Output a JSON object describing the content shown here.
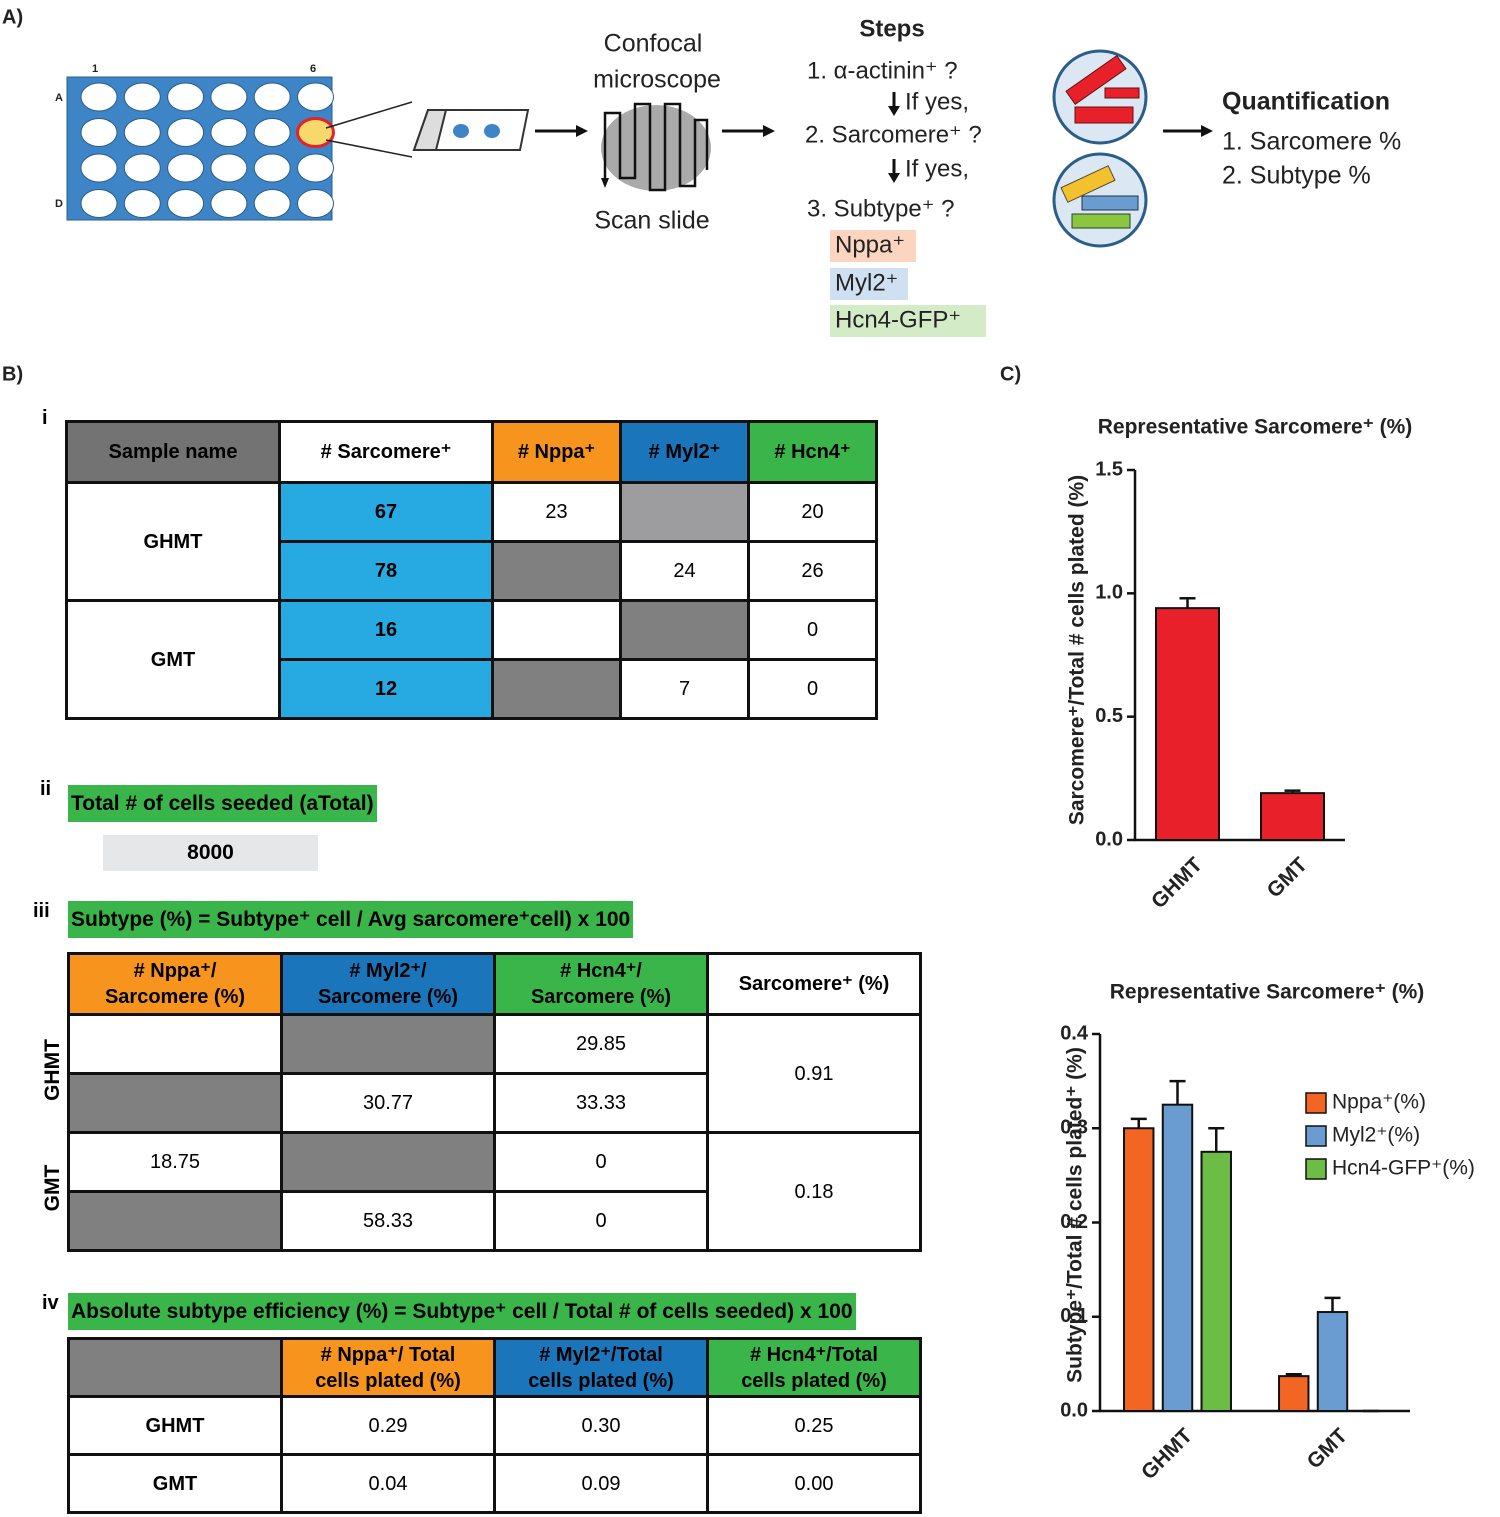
{
  "panel_a": {
    "label": "A)",
    "plate": {
      "col_first": "1",
      "col_last": "6",
      "row_first": "A",
      "row_last": "D"
    },
    "microscope": {
      "line1": "Confocal",
      "line2": "microscope",
      "caption": "Scan slide"
    },
    "steps": {
      "title": "Steps",
      "step1": "1. α-actinin⁺ ?",
      "if1": "If yes,",
      "step2": "2. Sarcomere⁺ ?",
      "if2": "If yes,",
      "step3": "3. Subtype⁺ ?",
      "subtypes": [
        "Nppa⁺",
        "Myl2⁺",
        "Hcn4-GFP⁺"
      ]
    },
    "quantification": {
      "title": "Quantification",
      "items": [
        "1. Sarcomere %",
        "2. Subtype %"
      ]
    }
  },
  "panel_b": {
    "label": "B)",
    "table_i": {
      "label": "i",
      "header": [
        "Sample name",
        "# Sarcomere⁺",
        "# Nppa⁺",
        "# Myl2⁺",
        "# Hcn4⁺"
      ],
      "groups": [
        {
          "sample": "GHMT",
          "replicates": [
            {
              "sarcomere": "67",
              "nppa": "23",
              "hcn4": "20"
            },
            {
              "sarcomere": "78",
              "myl2": "24",
              "hcn4": "26"
            }
          ]
        },
        {
          "sample": "GMT",
          "replicates": [
            {
              "sarcomere": "16",
              "hcn4": "0"
            },
            {
              "sarcomere": "12",
              "myl2": "7",
              "hcn4": "0"
            }
          ]
        }
      ]
    },
    "section_ii": {
      "label": "ii",
      "title": "Total # of cells seeded (aTotal)",
      "value": "8000"
    },
    "section_iii": {
      "label": "iii",
      "formula": "Subtype (%) = Subtype⁺ cell / Avg sarcomere⁺cell) x 100",
      "header": [
        "# Nppa⁺/\nSarcomere (%)",
        "# Myl2⁺/\nSarcomere (%)",
        "# Hcn4⁺/\nSarcomere (%)",
        "Sarcomere⁺ (%)"
      ],
      "groups": [
        {
          "sample": "GHMT",
          "sarcomere": "0.91",
          "replicates": [
            {
              "hcn4": "29.85"
            },
            {
              "myl2": "30.77",
              "hcn4": "33.33"
            }
          ]
        },
        {
          "sample": "GMT",
          "sarcomere": "0.18",
          "replicates": [
            {
              "nppa": "18.75",
              "hcn4": "0"
            },
            {
              "myl2": "58.33",
              "hcn4": "0"
            }
          ]
        }
      ]
    },
    "section_iv": {
      "label": "iv",
      "formula": "Absolute subtype efficiency (%) = Subtype⁺ cell / Total # of cells seeded) x 100",
      "header": [
        "# Nppa⁺/ Total\ncells plated (%)",
        "# Myl2⁺/Total\ncells plated (%)",
        "# Hcn4⁺/Total\ncells plated (%)"
      ],
      "rows": [
        {
          "sample": "GHMT",
          "nppa": "0.29",
          "myl2": "0.30",
          "hcn4": "0.25"
        },
        {
          "sample": "GMT",
          "nppa": "0.04",
          "myl2": "0.09",
          "hcn4": "0.00"
        }
      ]
    }
  },
  "panel_c": {
    "label": "C)"
  },
  "chart_data": [
    {
      "type": "bar",
      "title": "Representative Sarcomere⁺ (%)",
      "y_label": "Sarcomere⁺/Total # cells plated (%)",
      "categories": [
        "GHMT",
        "GMT"
      ],
      "values": [
        0.94,
        0.19
      ],
      "errors": [
        0.04,
        0.01
      ],
      "color": "#e8202a",
      "ylim": [
        0,
        1.5
      ],
      "yticks": [
        {
          "value": 0,
          "label": "0.0"
        },
        0.5,
        {
          "value": 1,
          "label": "1.0"
        },
        1.5
      ]
    },
    {
      "type": "bar",
      "title": "Representative Sarcomere⁺ (%)",
      "y_label": "Subtype⁺/Total # cells plated⁺ (%)",
      "categories": [
        "GHMT",
        "GMT"
      ],
      "series": [
        {
          "name": "Nppa⁺(%)",
          "color": "#f26522",
          "values": [
            0.3,
            0.037
          ],
          "errors": [
            0.01,
            0.002
          ]
        },
        {
          "name": "Myl2⁺(%)",
          "color": "#6a9bd1",
          "values": [
            0.325,
            0.105
          ],
          "errors": [
            0.025,
            0.015
          ]
        },
        {
          "name": "Hcn4-GFP⁺(%)",
          "color": "#6cbd45",
          "values": [
            0.275,
            0
          ],
          "errors": [
            0.025,
            0
          ]
        }
      ],
      "ylim": [
        0,
        0.4
      ],
      "yticks": [
        {
          "value": 0,
          "label": "0.0"
        },
        0.1,
        0.2,
        0.3,
        0.4
      ],
      "legend": "right"
    }
  ]
}
